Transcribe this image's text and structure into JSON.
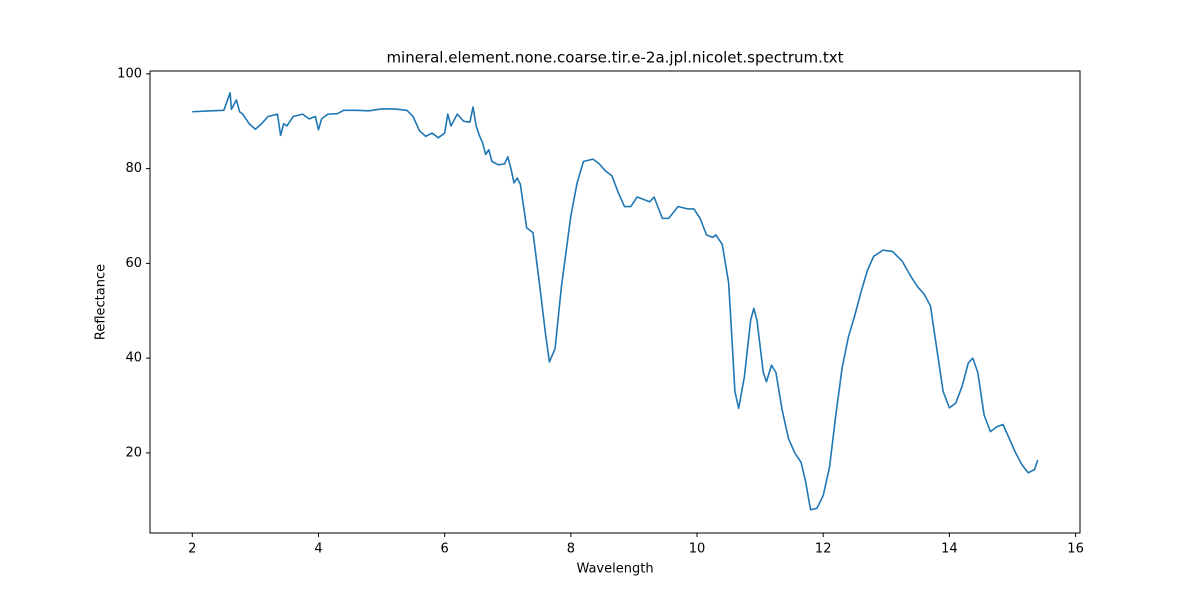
{
  "chart_data": {
    "type": "line",
    "title": "mineral.element.none.coarse.tir.e-2a.jpl.nicolet.spectrum.txt",
    "x_label": "Wavelength",
    "y_label": "Reflectance",
    "x": [
      2.0,
      2.3,
      2.5,
      2.6,
      2.62,
      2.7,
      2.75,
      2.8,
      2.9,
      3.0,
      3.1,
      3.2,
      3.35,
      3.4,
      3.45,
      3.5,
      3.6,
      3.75,
      3.85,
      3.95,
      4.0,
      4.05,
      4.15,
      4.3,
      4.4,
      4.6,
      4.8,
      5.0,
      5.2,
      5.4,
      5.5,
      5.6,
      5.7,
      5.8,
      5.9,
      6.0,
      6.05,
      6.1,
      6.2,
      6.3,
      6.4,
      6.45,
      6.5,
      6.55,
      6.6,
      6.65,
      6.7,
      6.75,
      6.85,
      6.95,
      7.0,
      7.05,
      7.1,
      7.15,
      7.2,
      7.3,
      7.4,
      7.5,
      7.6,
      7.66,
      7.75,
      7.85,
      8.0,
      8.1,
      8.2,
      8.35,
      8.45,
      8.55,
      8.65,
      8.75,
      8.85,
      8.95,
      9.05,
      9.15,
      9.25,
      9.32,
      9.45,
      9.55,
      9.7,
      9.85,
      9.95,
      10.05,
      10.15,
      10.25,
      10.3,
      10.4,
      10.5,
      10.55,
      10.6,
      10.66,
      10.75,
      10.85,
      10.9,
      10.95,
      11.05,
      11.1,
      11.18,
      11.25,
      11.35,
      11.45,
      11.55,
      11.65,
      11.72,
      11.8,
      11.9,
      12.0,
      12.1,
      12.2,
      12.3,
      12.4,
      12.5,
      12.6,
      12.7,
      12.8,
      12.95,
      13.1,
      13.25,
      13.4,
      13.5,
      13.6,
      13.7,
      13.8,
      13.9,
      14.0,
      14.1,
      14.2,
      14.3,
      14.37,
      14.45,
      14.55,
      14.65,
      14.75,
      14.85,
      14.95,
      15.05,
      15.15,
      15.25,
      15.35,
      15.4
    ],
    "series": [
      {
        "color": "#1f77b4",
        "values": [
          92,
          92.2,
          92.3,
          96,
          92.5,
          94.5,
          92,
          91.5,
          89.5,
          88.3,
          89.5,
          91,
          91.5,
          87,
          89.5,
          89,
          91,
          91.5,
          90.5,
          91,
          88.2,
          90.5,
          91.5,
          91.6,
          92.3,
          92.3,
          92.2,
          92.6,
          92.6,
          92.3,
          91,
          88,
          86.8,
          87.5,
          86.5,
          87.5,
          91.5,
          89,
          91.5,
          90,
          89.8,
          93,
          89,
          87,
          85.5,
          83,
          84,
          81.5,
          80.8,
          81,
          82.5,
          80,
          77,
          78,
          76.7,
          67.5,
          66.5,
          56,
          45,
          39.2,
          42,
          55,
          70,
          77,
          81.5,
          82,
          81,
          79.5,
          78.5,
          75,
          72,
          72,
          74,
          73.5,
          73,
          74,
          69.5,
          69.5,
          72,
          71.5,
          71.5,
          69.5,
          66,
          65.5,
          66,
          64,
          56,
          45,
          33,
          29.4,
          36,
          48,
          50.5,
          48,
          37,
          35,
          38.5,
          37,
          29,
          23,
          20,
          18,
          14,
          8,
          8.3,
          11,
          17,
          28,
          38,
          44.5,
          49,
          54,
          58.5,
          61.5,
          62.8,
          62.5,
          60.5,
          57,
          55,
          53.5,
          51,
          42,
          33,
          29.5,
          30.5,
          34,
          39,
          40,
          37,
          28,
          24.5,
          25.5,
          26,
          23,
          20,
          17.5,
          15.8,
          16.5,
          18.5
        ]
      }
    ],
    "xlim": [
      1.33,
      16.07
    ],
    "ylim": [
      3.1,
      100.6
    ],
    "xticks": [
      2,
      4,
      6,
      8,
      10,
      12,
      14,
      16
    ],
    "yticks": [
      20,
      40,
      60,
      80,
      100
    ]
  }
}
